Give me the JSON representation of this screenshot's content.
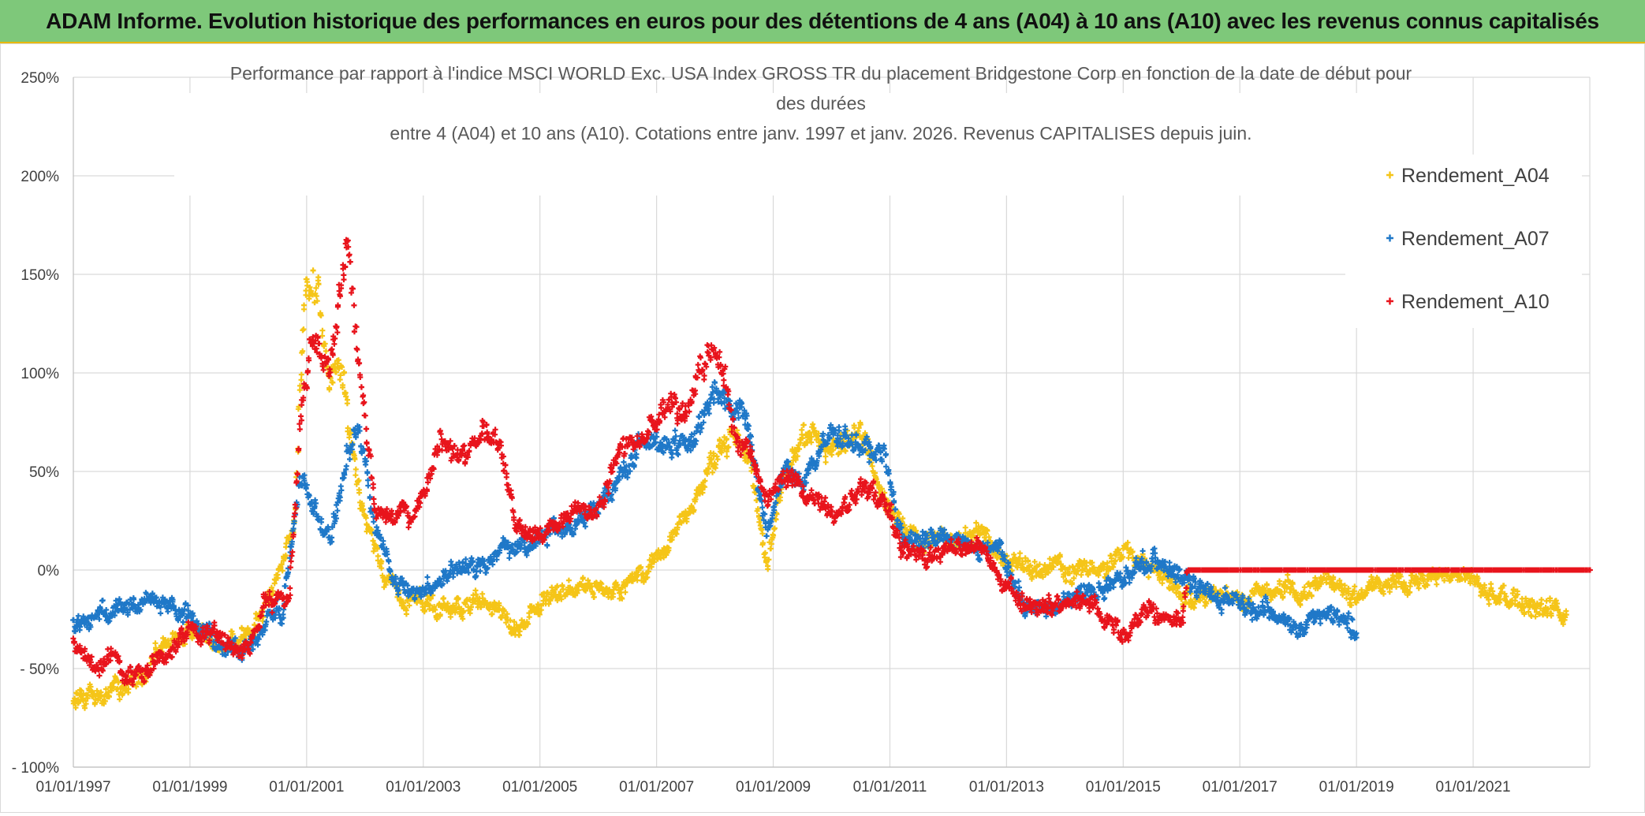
{
  "banner": {
    "title": "ADAM Informe. Evolution historique des performances en euros pour des détentions de 4 ans (A04) à 10 ans (A10) avec les revenus connus capitalisés"
  },
  "chart_data": {
    "type": "scatter",
    "title_lines": [
      "Performance par rapport à l'indice MSCI WORLD Exc. USA Index GROSS TR  du placement Bridgestone Corp en fonction de la date de début pour",
      "des durées",
      "entre 4 (A04) et 10 ans (A10). Cotations entre janv. 1997 et janv. 2026. Revenus CAPITALISES depuis juin."
    ],
    "xlabel": "",
    "ylabel": "",
    "x_range": [
      "1997-01-01",
      "2023-01-01"
    ],
    "x_tick_labels": [
      "01/01/1997",
      "01/01/1999",
      "01/01/2001",
      "01/01/2003",
      "01/01/2005",
      "01/01/2007",
      "01/01/2009",
      "01/01/2011",
      "01/01/2013",
      "01/01/2015",
      "01/01/2017",
      "01/01/2019",
      "01/01/2021"
    ],
    "y_range": [
      -100,
      250
    ],
    "y_ticks": [
      -100,
      -50,
      0,
      50,
      100,
      150,
      200,
      250
    ],
    "y_tick_labels": [
      "- 100%",
      "- 50%",
      "0%",
      "50%",
      "100%",
      "150%",
      "200%",
      "250%"
    ],
    "grid": true,
    "legend_position": "top-right",
    "marker": "+",
    "series": [
      {
        "name": "Rendement_A04",
        "color": "#f5c518",
        "start": "1997-01-01",
        "end": "2022-07-01",
        "points": [
          [
            1997.0,
            -68
          ],
          [
            1997.5,
            -62
          ],
          [
            1998.0,
            -60
          ],
          [
            1998.5,
            -40
          ],
          [
            1999.0,
            -32
          ],
          [
            1999.5,
            -38
          ],
          [
            2000.0,
            -35
          ],
          [
            2000.3,
            -20
          ],
          [
            2000.6,
            5
          ],
          [
            2000.8,
            30
          ],
          [
            2000.9,
            100
          ],
          [
            2001.0,
            150
          ],
          [
            2001.2,
            140
          ],
          [
            2001.4,
            95
          ],
          [
            2001.6,
            100
          ],
          [
            2001.9,
            40
          ],
          [
            2002.2,
            5
          ],
          [
            2002.5,
            -12
          ],
          [
            2002.8,
            -15
          ],
          [
            2003.0,
            -18
          ],
          [
            2003.5,
            -20
          ],
          [
            2004.0,
            -15
          ],
          [
            2004.6,
            -30
          ],
          [
            2005.0,
            -20
          ],
          [
            2005.5,
            -12
          ],
          [
            2006.0,
            -10
          ],
          [
            2006.5,
            -8
          ],
          [
            2007.0,
            5
          ],
          [
            2007.5,
            30
          ],
          [
            2008.0,
            55
          ],
          [
            2008.3,
            70
          ],
          [
            2008.6,
            55
          ],
          [
            2008.9,
            5
          ],
          [
            2009.2,
            50
          ],
          [
            2009.5,
            70
          ],
          [
            2010.0,
            60
          ],
          [
            2010.5,
            70
          ],
          [
            2011.0,
            30
          ],
          [
            2011.5,
            15
          ],
          [
            2012.0,
            15
          ],
          [
            2012.5,
            20
          ],
          [
            2013.0,
            5
          ],
          [
            2013.5,
            0
          ],
          [
            2014.0,
            0
          ],
          [
            2014.5,
            0
          ],
          [
            2015.0,
            10
          ],
          [
            2015.5,
            0
          ],
          [
            2016.0,
            -10
          ],
          [
            2016.5,
            -15
          ],
          [
            2017.0,
            -15
          ],
          [
            2017.5,
            -10
          ],
          [
            2018.0,
            -10
          ],
          [
            2018.6,
            -5
          ],
          [
            2019.0,
            -15
          ],
          [
            2019.5,
            -5
          ],
          [
            2020.0,
            -5
          ],
          [
            2020.5,
            0
          ],
          [
            2021.0,
            -5
          ],
          [
            2021.5,
            -15
          ],
          [
            2022.0,
            -20
          ],
          [
            2022.3,
            -18
          ],
          [
            2022.6,
            -25
          ]
        ]
      },
      {
        "name": "Rendement_A07",
        "color": "#1f78c8",
        "start": "1997-01-01",
        "end": "2019-01-01",
        "points": [
          [
            1997.0,
            -30
          ],
          [
            1997.5,
            -20
          ],
          [
            1998.0,
            -18
          ],
          [
            1998.5,
            -15
          ],
          [
            1999.0,
            -25
          ],
          [
            1999.5,
            -35
          ],
          [
            2000.0,
            -40
          ],
          [
            2000.3,
            -25
          ],
          [
            2000.6,
            -20
          ],
          [
            2000.9,
            50
          ],
          [
            2001.1,
            30
          ],
          [
            2001.4,
            15
          ],
          [
            2001.7,
            60
          ],
          [
            2001.9,
            70
          ],
          [
            2002.2,
            20
          ],
          [
            2002.5,
            -5
          ],
          [
            2002.8,
            -10
          ],
          [
            2003.0,
            -10
          ],
          [
            2003.5,
            0
          ],
          [
            2004.0,
            5
          ],
          [
            2004.5,
            10
          ],
          [
            2005.0,
            15
          ],
          [
            2005.5,
            25
          ],
          [
            2006.0,
            30
          ],
          [
            2006.3,
            45
          ],
          [
            2006.7,
            60
          ],
          [
            2007.0,
            65
          ],
          [
            2007.5,
            60
          ],
          [
            2008.0,
            90
          ],
          [
            2008.5,
            80
          ],
          [
            2008.9,
            20
          ],
          [
            2009.2,
            50
          ],
          [
            2009.5,
            45
          ],
          [
            2010.0,
            70
          ],
          [
            2010.5,
            60
          ],
          [
            2010.9,
            60
          ],
          [
            2011.2,
            15
          ],
          [
            2011.6,
            15
          ],
          [
            2012.0,
            15
          ],
          [
            2012.5,
            12
          ],
          [
            2012.9,
            10
          ],
          [
            2013.3,
            -20
          ],
          [
            2013.7,
            -20
          ],
          [
            2014.0,
            -15
          ],
          [
            2014.5,
            -10
          ],
          [
            2015.0,
            -5
          ],
          [
            2015.5,
            5
          ],
          [
            2016.0,
            -5
          ],
          [
            2016.5,
            -10
          ],
          [
            2017.0,
            -15
          ],
          [
            2017.5,
            -20
          ],
          [
            2018.0,
            -30
          ],
          [
            2018.5,
            -20
          ],
          [
            2019.0,
            -30
          ]
        ]
      },
      {
        "name": "Rendement_A10",
        "color": "#e8141c",
        "start": "1997-01-01",
        "end": "2023-01-01",
        "points": [
          [
            1997.0,
            -35
          ],
          [
            1997.3,
            -50
          ],
          [
            1997.7,
            -45
          ],
          [
            1998.0,
            -55
          ],
          [
            1998.5,
            -45
          ],
          [
            1999.0,
            -30
          ],
          [
            1999.5,
            -35
          ],
          [
            2000.0,
            -40
          ],
          [
            2000.3,
            -15
          ],
          [
            2000.7,
            -15
          ],
          [
            2000.9,
            80
          ],
          [
            2001.1,
            120
          ],
          [
            2001.4,
            100
          ],
          [
            2001.7,
            170
          ],
          [
            2001.9,
            100
          ],
          [
            2002.2,
            30
          ],
          [
            2002.5,
            30
          ],
          [
            2002.8,
            25
          ],
          [
            2003.0,
            40
          ],
          [
            2003.3,
            65
          ],
          [
            2003.6,
            55
          ],
          [
            2004.0,
            75
          ],
          [
            2004.3,
            65
          ],
          [
            2004.6,
            25
          ],
          [
            2005.0,
            20
          ],
          [
            2005.5,
            25
          ],
          [
            2006.0,
            30
          ],
          [
            2006.4,
            60
          ],
          [
            2006.8,
            65
          ],
          [
            2007.2,
            85
          ],
          [
            2007.5,
            80
          ],
          [
            2008.0,
            120
          ],
          [
            2008.3,
            75
          ],
          [
            2008.6,
            60
          ],
          [
            2008.9,
            35
          ],
          [
            2009.2,
            45
          ],
          [
            2009.5,
            40
          ],
          [
            2010.0,
            30
          ],
          [
            2010.5,
            40
          ],
          [
            2010.9,
            35
          ],
          [
            2011.2,
            10
          ],
          [
            2011.6,
            5
          ],
          [
            2012.0,
            10
          ],
          [
            2012.5,
            15
          ],
          [
            2013.0,
            -10
          ],
          [
            2013.5,
            -20
          ],
          [
            2014.0,
            -15
          ],
          [
            2014.5,
            -20
          ],
          [
            2015.0,
            -30
          ],
          [
            2015.5,
            -20
          ],
          [
            2016.0,
            -25
          ],
          [
            2016.1,
            0
          ],
          [
            2023.0,
            0
          ]
        ]
      }
    ]
  }
}
